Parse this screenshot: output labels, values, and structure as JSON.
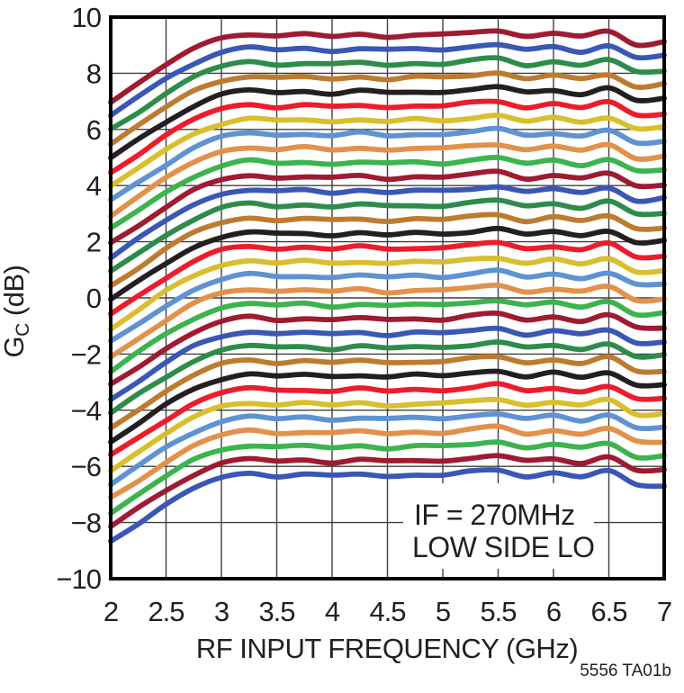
{
  "figure": {
    "footer_code": "5556 TA01b",
    "background": "#FFFFFF",
    "frame_color": "#000000",
    "grid_color": "#3F3F41",
    "text_color": "#231F20"
  },
  "chart_data": {
    "type": "line",
    "title": "",
    "xlabel": "RF INPUT FREQUENCY (GHz)",
    "ylabel": "Gc (dB)",
    "ylabel_parts": {
      "main": "G",
      "sub": "C",
      "rest": " (dB)"
    },
    "xlim": [
      2,
      7
    ],
    "ylim": [
      -10,
      10
    ],
    "grid": true,
    "legend": "none",
    "x_ticks": [
      2,
      2.5,
      3,
      3.5,
      4,
      4.5,
      5,
      5.5,
      6,
      6.5,
      7
    ],
    "x_tick_labels": [
      "2",
      "2.5",
      "3",
      "3.5",
      "4",
      "4.5",
      "5",
      "5.5",
      "6",
      "6.5",
      "7"
    ],
    "y_ticks": [
      10,
      8,
      6,
      4,
      2,
      0,
      -2,
      -4,
      -6,
      -8,
      -10
    ],
    "y_tick_labels": [
      "10",
      "8",
      "6",
      "4",
      "2",
      "0",
      "−2",
      "−4",
      "−6",
      "−8",
      "−10"
    ],
    "annotations": [
      "IF = 270MHz",
      "LOW SIDE LO"
    ],
    "description": "32 conversion-gain traces at ~0.5dB gain steps; each trace rolls off ~2.3dB at 2GHz, is flat with small ripple from 3 to 6.5GHz, and dips ~0.3dB near 7GHz",
    "x_samples": [
      2.0,
      2.25,
      2.5,
      2.75,
      3.0,
      3.25,
      3.5,
      3.75,
      4.0,
      4.25,
      4.5,
      4.75,
      5.0,
      5.25,
      5.5,
      5.75,
      6.0,
      6.25,
      6.5,
      6.75,
      7.0
    ],
    "shape_offsets_db": [
      -2.35,
      -1.7,
      -1.05,
      -0.48,
      -0.1,
      0.06,
      -0.02,
      0.03,
      -0.04,
      0.04,
      -0.04,
      0.02,
      0.0,
      0.1,
      0.18,
      -0.03,
      0.08,
      -0.06,
      0.13,
      -0.3,
      -0.22
    ],
    "series": [
      {
        "name": "trace-01",
        "flat_db": 9.35,
        "color": "#9E1B32"
      },
      {
        "name": "trace-02",
        "flat_db": 8.85,
        "color": "#3A57B5"
      },
      {
        "name": "trace-03",
        "flat_db": 8.34,
        "color": "#2E8C4B"
      },
      {
        "name": "trace-04",
        "flat_db": 7.84,
        "color": "#BD7B30"
      },
      {
        "name": "trace-05",
        "flat_db": 7.33,
        "color": "#231F20"
      },
      {
        "name": "trace-06",
        "flat_db": 6.83,
        "color": "#ED1C2D"
      },
      {
        "name": "trace-07",
        "flat_db": 6.32,
        "color": "#D9BE2E"
      },
      {
        "name": "trace-08",
        "flat_db": 5.82,
        "color": "#5E93D3"
      },
      {
        "name": "trace-09",
        "flat_db": 5.31,
        "color": "#E2914B"
      },
      {
        "name": "trace-10",
        "flat_db": 4.81,
        "color": "#3CB44E"
      },
      {
        "name": "trace-11",
        "flat_db": 4.3,
        "color": "#9E1B32"
      },
      {
        "name": "trace-12",
        "flat_db": 3.8,
        "color": "#3A57B5"
      },
      {
        "name": "trace-13",
        "flat_db": 3.29,
        "color": "#2E8C4B"
      },
      {
        "name": "trace-14",
        "flat_db": 2.79,
        "color": "#BD7B30"
      },
      {
        "name": "trace-15",
        "flat_db": 2.28,
        "color": "#231F20"
      },
      {
        "name": "trace-16",
        "flat_db": 1.78,
        "color": "#ED1C2D"
      },
      {
        "name": "trace-17",
        "flat_db": 1.27,
        "color": "#D9BE2E"
      },
      {
        "name": "trace-18",
        "flat_db": 0.77,
        "color": "#5E93D3"
      },
      {
        "name": "trace-19",
        "flat_db": 0.26,
        "color": "#E2914B"
      },
      {
        "name": "trace-20",
        "flat_db": -0.25,
        "color": "#3CB44E"
      },
      {
        "name": "trace-21",
        "flat_db": -0.75,
        "color": "#9E1B32"
      },
      {
        "name": "trace-22",
        "flat_db": -1.26,
        "color": "#3A57B5"
      },
      {
        "name": "trace-23",
        "flat_db": -1.76,
        "color": "#2E8C4B"
      },
      {
        "name": "trace-24",
        "flat_db": -2.27,
        "color": "#BD7B30"
      },
      {
        "name": "trace-25",
        "flat_db": -2.77,
        "color": "#231F20"
      },
      {
        "name": "trace-26",
        "flat_db": -3.28,
        "color": "#ED1C2D"
      },
      {
        "name": "trace-27",
        "flat_db": -3.78,
        "color": "#D9BE2E"
      },
      {
        "name": "trace-28",
        "flat_db": -4.29,
        "color": "#5E93D3"
      },
      {
        "name": "trace-29",
        "flat_db": -4.79,
        "color": "#E2914B"
      },
      {
        "name": "trace-30",
        "flat_db": -5.3,
        "color": "#3CB44E"
      },
      {
        "name": "trace-31",
        "flat_db": -5.8,
        "color": "#9E1B32"
      },
      {
        "name": "trace-32",
        "flat_db": -6.31,
        "color": "#3A57B5"
      }
    ]
  }
}
